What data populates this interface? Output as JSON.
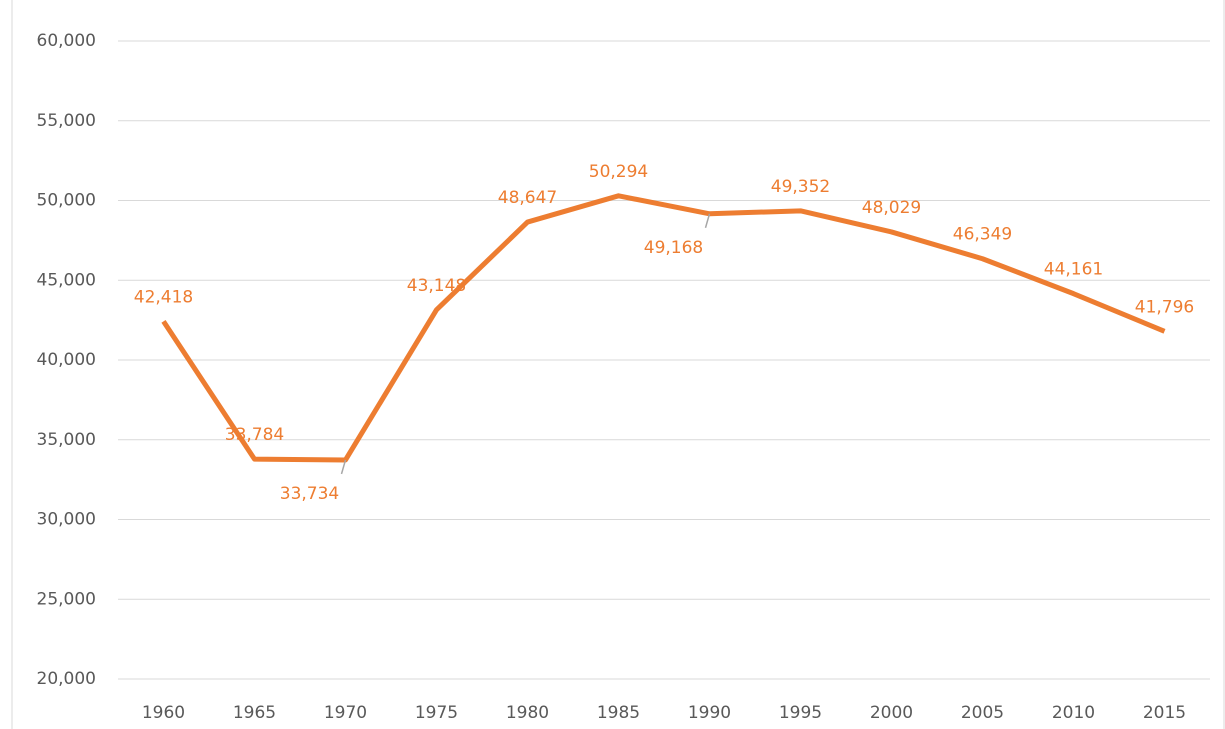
{
  "chart_data": {
    "type": "line",
    "categories": [
      "1960",
      "1965",
      "1970",
      "1975",
      "1980",
      "1985",
      "1990",
      "1995",
      "2000",
      "2005",
      "2010",
      "2015"
    ],
    "series": [
      {
        "color": "#ED7D31",
        "values": [
          42418,
          33784,
          33734,
          43148,
          48647,
          50294,
          49168,
          49352,
          48029,
          46349,
          44161,
          41796
        ],
        "value_labels": [
          "42,418",
          "33,784",
          "33,734",
          "43,148",
          "48,647",
          "50,294",
          "49,168",
          "49,352",
          "48,029",
          "46,349",
          "44,161",
          "41,796"
        ]
      }
    ],
    "ylim": [
      20000,
      60000
    ],
    "yticks": [
      {
        "value": 20000,
        "label": "20,000"
      },
      {
        "value": 25000,
        "label": "25,000"
      },
      {
        "value": 30000,
        "label": "30,000"
      },
      {
        "value": 35000,
        "label": "35,000"
      },
      {
        "value": 40000,
        "label": "40,000"
      },
      {
        "value": 45000,
        "label": "45,000"
      },
      {
        "value": 50000,
        "label": "50,000"
      },
      {
        "value": 55000,
        "label": "55,000"
      },
      {
        "value": 60000,
        "label": "60,000"
      }
    ],
    "grid": true
  }
}
